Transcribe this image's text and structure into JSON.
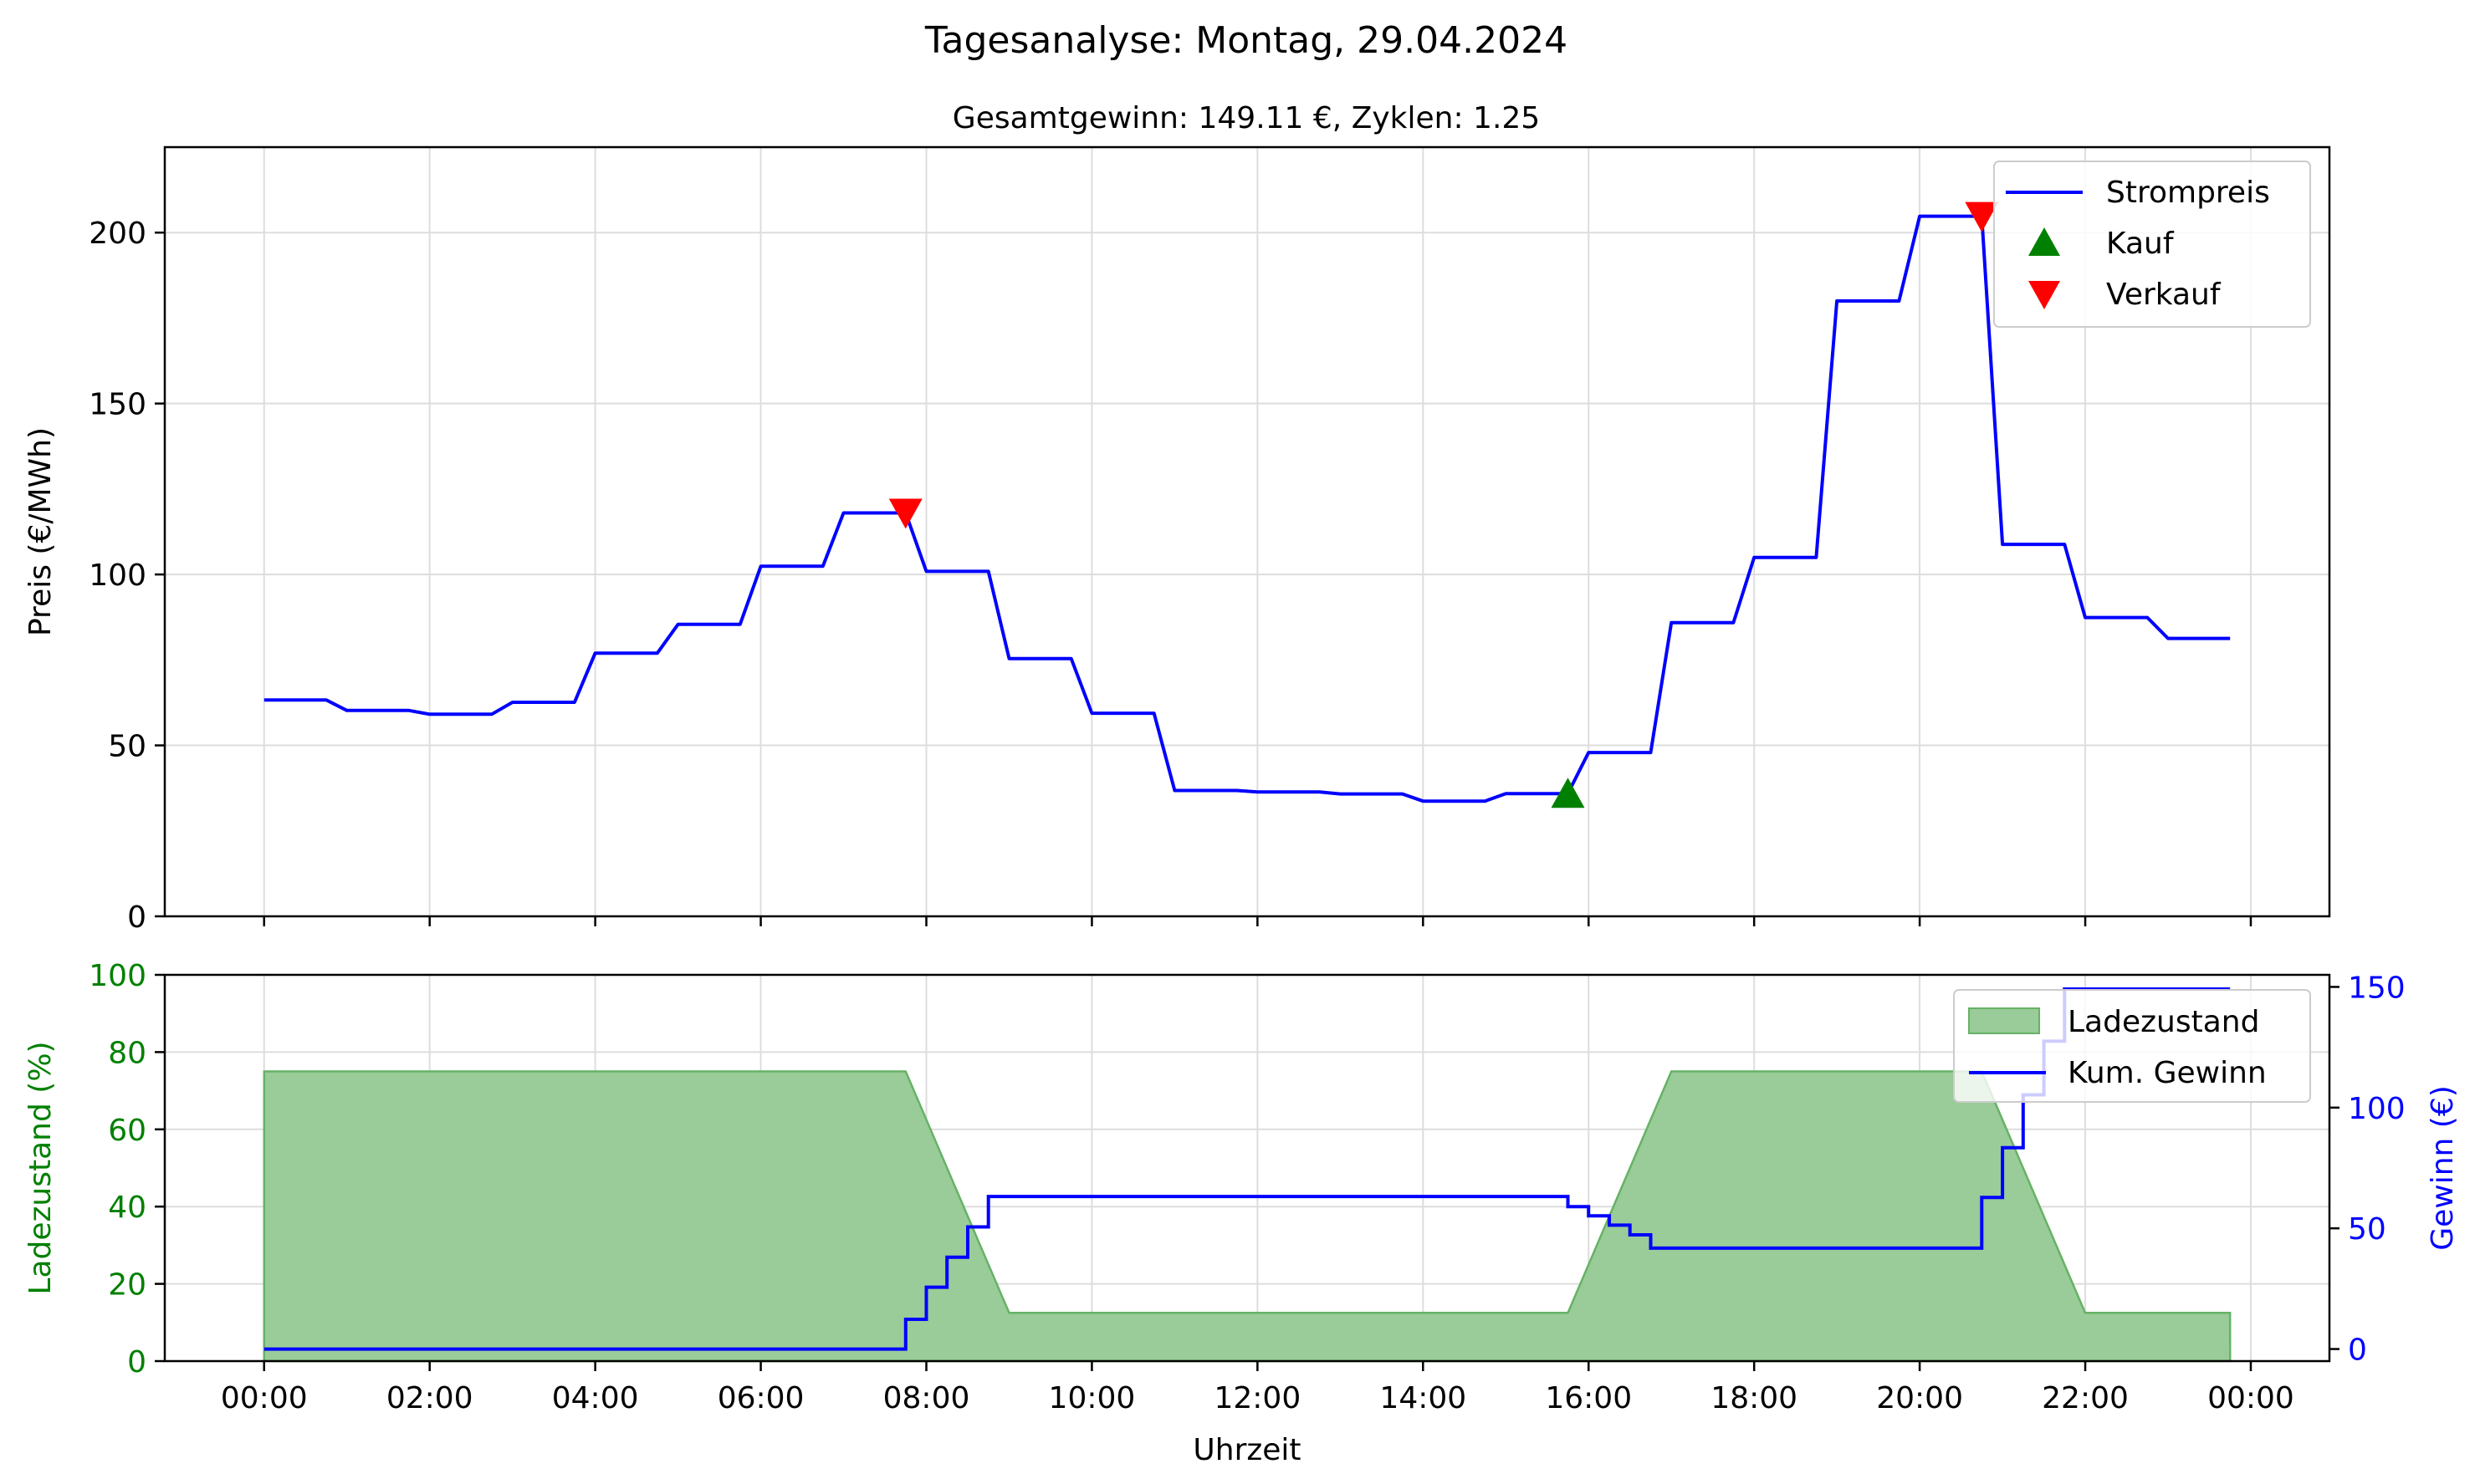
{
  "suptitle": "Tagesanalyse: Montag, 29.04.2024",
  "colors": {
    "price": "#0000ff",
    "buy": "#008000",
    "sell": "#ff0000",
    "soc_fill": "#99cc99",
    "soc_edge": "#66b266",
    "profit": "#0000ff",
    "soc_axis": "#008000",
    "grid": "#dddddd"
  },
  "chart_data": [
    {
      "type": "line",
      "title": "Gesamtgewinn: 149.11 €, Zyklen: 1.25",
      "xlabel": "",
      "ylabel": "Preis (€/MWh)",
      "ylim": [
        0,
        225
      ],
      "yticks": [
        0,
        50,
        100,
        150,
        200
      ],
      "xlim_hours": [
        -1.2,
        24.95
      ],
      "grid": true,
      "legend_placement": "top-right",
      "legend": [
        "Strompreis",
        "Kauf",
        "Verkauf"
      ],
      "series": [
        {
          "name": "Strompreis",
          "step_hours": [
            0,
            1,
            2,
            3,
            4,
            5,
            6,
            7,
            8,
            9,
            10,
            11,
            12,
            13,
            14,
            15,
            16,
            17,
            18,
            19,
            20,
            21,
            22,
            23
          ],
          "values": [
            63.3,
            60.2,
            59.1,
            62.6,
            77.0,
            85.4,
            102.4,
            118.0,
            100.9,
            75.4,
            59.4,
            36.8,
            36.4,
            35.8,
            33.7,
            35.9,
            47.9,
            85.9,
            105.0,
            180.0,
            204.8,
            108.8,
            87.4,
            81.3
          ],
          "end_hour": 23.75
        }
      ],
      "markers": [
        {
          "name": "Kauf",
          "shape": "triangle-up",
          "points": [
            {
              "x": "15:45",
              "y": 35.9
            }
          ]
        },
        {
          "name": "Verkauf",
          "shape": "triangle-down",
          "points": [
            {
              "x": "07:45",
              "y": 118.0
            },
            {
              "x": "20:45",
              "y": 204.8
            }
          ]
        }
      ]
    },
    {
      "type": "area",
      "title": "",
      "xlabel": "Uhrzeit",
      "ylabel": "Ladezustand (%)",
      "ylabel_right": "Gewinn (€)",
      "ylim": [
        0,
        100
      ],
      "yticks": [
        0,
        20,
        40,
        60,
        80,
        100
      ],
      "ylim_right": [
        -5,
        155
      ],
      "yticks_right": [
        0,
        50,
        100,
        150
      ],
      "x_tick_labels": [
        "00:00",
        "02:00",
        "04:00",
        "06:00",
        "08:00",
        "10:00",
        "12:00",
        "14:00",
        "16:00",
        "18:00",
        "20:00",
        "22:00",
        "00:00"
      ],
      "grid": true,
      "legend_placement": "top-right",
      "legend": [
        "Ladezustand",
        "Kum. Gewinn"
      ],
      "series": [
        {
          "name": "Ladezustand",
          "x_hours": [
            0,
            7.75,
            9.0,
            15.75,
            17.0,
            20.75,
            22.0,
            23.75
          ],
          "values": [
            75,
            75,
            12.5,
            12.5,
            75,
            75,
            12.5,
            12.5
          ]
        },
        {
          "name": "Kum. Gewinn",
          "x_hours": [
            0,
            7.75,
            8.0,
            8.25,
            8.5,
            8.75,
            15.75,
            16.0,
            16.25,
            16.5,
            16.75,
            20.75,
            21.0,
            21.25,
            21.5,
            21.75
          ],
          "values": [
            0,
            12.3,
            25.6,
            38.0,
            50.6,
            63.2,
            59.0,
            55.2,
            51.3,
            47.3,
            41.8,
            62.8,
            83.4,
            105.3,
            127.5,
            149.11
          ],
          "end_hour": 23.75
        }
      ]
    }
  ]
}
